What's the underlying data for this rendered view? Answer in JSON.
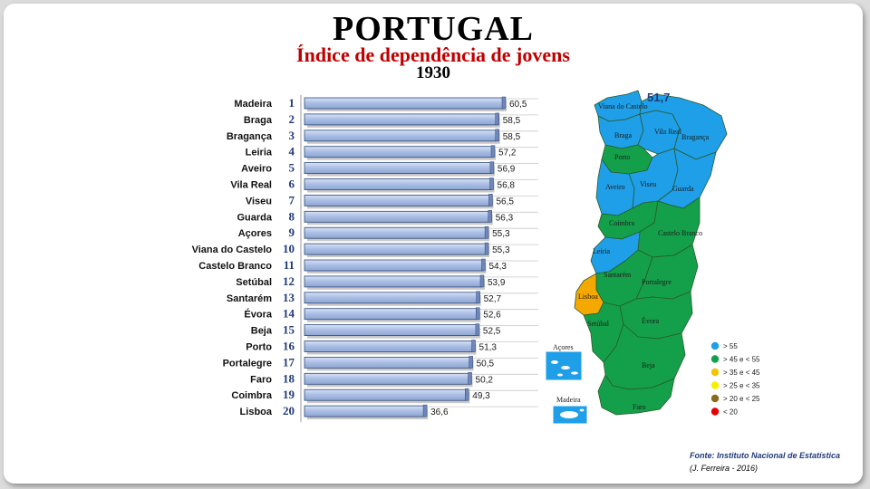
{
  "header": {
    "title": "PORTUGAL",
    "subtitle": "Índice de dependência de jovens",
    "year": "1930"
  },
  "chart_data": {
    "type": "bar",
    "orientation": "horizontal",
    "title": "Índice de dependência de jovens",
    "xlim": [
      0,
      62
    ],
    "categories": [
      "Madeira",
      "Braga",
      "Bragança",
      "Leiria",
      "Aveiro",
      "Vila Real",
      "Viseu",
      "Guarda",
      "Açores",
      "Viana do Castelo",
      "Castelo Branco",
      "Setúbal",
      "Santarém",
      "Évora",
      "Beja",
      "Porto",
      "Portalegre",
      "Faro",
      "Coimbra",
      "Lisboa"
    ],
    "ranks": [
      "1",
      "2",
      "3",
      "4",
      "5",
      "6",
      "7",
      "8",
      "9",
      "10",
      "11",
      "12",
      "13",
      "14",
      "15",
      "16",
      "17",
      "18",
      "19",
      "20"
    ],
    "values": [
      60.5,
      58.5,
      58.5,
      57.2,
      56.9,
      56.8,
      56.5,
      56.3,
      55.3,
      55.3,
      54.3,
      53.9,
      52.7,
      52.6,
      52.5,
      51.3,
      50.5,
      50.2,
      49.3,
      36.6
    ],
    "value_labels": [
      "60,5",
      "58,5",
      "58,5",
      "57,2",
      "56,9",
      "56,8",
      "56,5",
      "56,3",
      "55,3",
      "55,3",
      "54,3",
      "53,9",
      "52,7",
      "52,6",
      "52,5",
      "51,3",
      "50,5",
      "50,2",
      "49,3",
      "36,6"
    ],
    "bar_color": "#a9bde3",
    "bar_edge_color": "#2f4a7a",
    "rank_color": "#1f3a7a"
  },
  "map": {
    "national_value": "51,7",
    "regions": [
      "Viana do Castelo",
      "Braga",
      "Vila Real",
      "Bragança",
      "Porto",
      "Aveiro",
      "Viseu",
      "Guarda",
      "Coimbra",
      "Castelo Branco",
      "Leiria",
      "Santarém",
      "Portalegre",
      "Lisboa",
      "Setúbal",
      "Évora",
      "Beja",
      "Faro"
    ],
    "insets": [
      "Açores",
      "Madeira"
    ],
    "colors": {
      "blue": "#1e9fe8",
      "green": "#14a04a",
      "orange": "#f5a800"
    }
  },
  "legend": [
    {
      "label": "> 55",
      "color": "#1e9fe8"
    },
    {
      "label": "> 45 e < 55",
      "color": "#14a04a"
    },
    {
      "label": "> 35 e < 45",
      "color": "#f2c500"
    },
    {
      "label": "> 25 e < 35",
      "color": "#f5f000"
    },
    {
      "label": "> 20  e < 25",
      "color": "#8a6a1a"
    },
    {
      "label": "< 20",
      "color": "#e60000"
    }
  ],
  "footer": {
    "source": "Fonte: Instituto Nacional de Estatística",
    "author": "(J. Ferreira - 2016)"
  }
}
